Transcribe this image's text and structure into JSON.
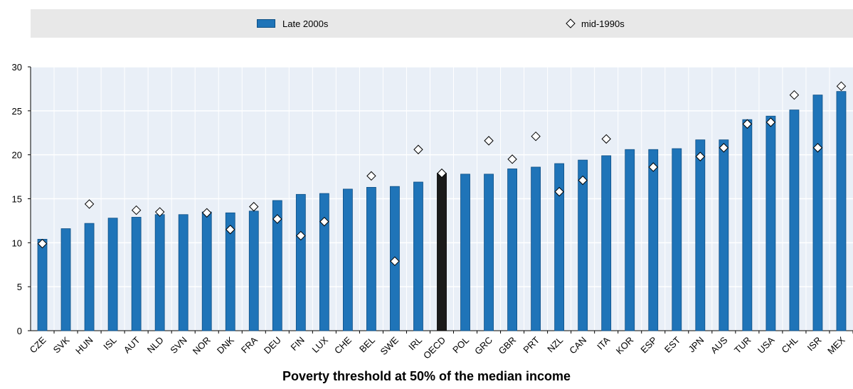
{
  "chart_data": {
    "type": "bar",
    "title": "Poverty threshold at 50% of the median income",
    "xlabel": "",
    "ylabel": "",
    "ylim": [
      0,
      30
    ],
    "yticks": [
      0,
      5,
      10,
      15,
      20,
      25,
      30
    ],
    "grid": true,
    "legend_position": "top",
    "categories": [
      "CZE",
      "SVK",
      "HUN",
      "ISL",
      "AUT",
      "NLD",
      "SVN",
      "NOR",
      "DNK",
      "FRA",
      "DEU",
      "FIN",
      "LUX",
      "CHE",
      "BEL",
      "SWE",
      "IRL",
      "OECD",
      "POL",
      "GRC",
      "GBR",
      "PRT",
      "NZL",
      "CAN",
      "ITA",
      "KOR",
      "ESP",
      "EST",
      "JPN",
      "AUS",
      "TUR",
      "USA",
      "CHL",
      "ISR",
      "MEX"
    ],
    "highlight_category": "OECD",
    "series": [
      {
        "name": "Late 2000s",
        "kind": "bar",
        "color": "#1f74b8",
        "values": [
          10.4,
          11.6,
          12.2,
          12.8,
          12.9,
          13.2,
          13.2,
          13.5,
          13.4,
          13.6,
          14.8,
          15.5,
          15.6,
          16.1,
          16.3,
          16.4,
          16.9,
          17.9,
          17.8,
          17.8,
          18.4,
          18.6,
          19.0,
          19.4,
          19.9,
          20.6,
          20.6,
          20.7,
          21.7,
          21.7,
          24.0,
          24.4,
          25.1,
          26.8,
          27.2
        ]
      },
      {
        "name": "mid-1990s",
        "kind": "marker",
        "marker": "diamond",
        "values": [
          9.9,
          null,
          14.4,
          null,
          13.7,
          13.5,
          null,
          13.4,
          11.5,
          14.1,
          12.7,
          10.8,
          12.4,
          null,
          17.6,
          7.9,
          20.6,
          17.9,
          null,
          21.6,
          19.5,
          22.1,
          15.8,
          17.1,
          21.8,
          null,
          18.6,
          null,
          19.8,
          20.8,
          23.5,
          23.7,
          26.8,
          20.8,
          27.8
        ]
      }
    ]
  },
  "colors": {
    "bar": "#1f74b8",
    "bar_border": "#0d4f85",
    "highlight": "#1a1a1a",
    "plot_bg": "#e9eff7",
    "legend_bg": "#e8e8e8"
  }
}
